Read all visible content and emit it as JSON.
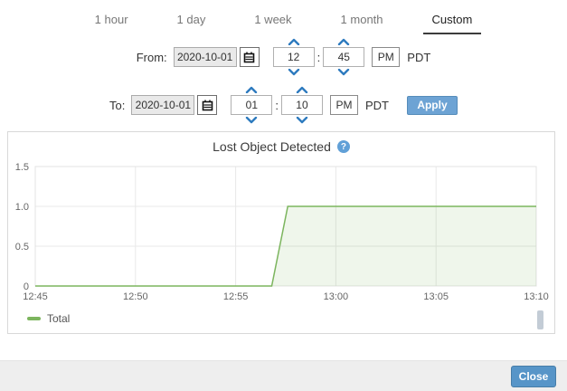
{
  "time_range_tabs": {
    "items": [
      {
        "label": "1 hour",
        "active": false
      },
      {
        "label": "1 day",
        "active": false
      },
      {
        "label": "1 week",
        "active": false
      },
      {
        "label": "1 month",
        "active": false
      },
      {
        "label": "Custom",
        "active": true
      }
    ]
  },
  "from_row": {
    "label": "From:",
    "date_value": "2020-10-01",
    "hour_value": "12",
    "minute_value": "45",
    "meridiem_value": "PM",
    "timezone_label": "PDT"
  },
  "to_row": {
    "label": "To:",
    "date_value": "2020-10-01",
    "hour_value": "01",
    "minute_value": "10",
    "meridiem_value": "PM",
    "timezone_label": "PDT"
  },
  "apply_button_label": "Apply",
  "chart": {
    "title": "Lost Object Detected",
    "help_icon_glyph": "?"
  },
  "chart_data": {
    "type": "area",
    "title": "Lost Object Detected",
    "grid": true,
    "legend_position": "bottom-left",
    "x_axis": {
      "tick_labels": [
        "12:45",
        "12:50",
        "12:55",
        "13:00",
        "13:05",
        "13:10"
      ],
      "tick_minutes": [
        0,
        5,
        10,
        15,
        20,
        25
      ],
      "xlim_minutes": [
        0,
        25
      ]
    },
    "y_axis": {
      "tick_labels": [
        "0",
        "0.5",
        "1.0",
        "1.5"
      ],
      "tick_values": [
        0,
        0.5,
        1.0,
        1.5
      ],
      "ylim": [
        0,
        1.5
      ]
    },
    "series": [
      {
        "name": "Total",
        "color": "#7cb55e",
        "fill_opacity": 0.12,
        "points_minutes": [
          [
            0,
            0
          ],
          [
            11.8,
            0
          ],
          [
            12.6,
            1
          ],
          [
            25,
            1
          ]
        ]
      }
    ]
  },
  "footer": {
    "close_label": "Close"
  },
  "colors": {
    "accent_blue": "#2e7bbf",
    "apply_button_blue": "#6da3d4",
    "close_button_blue": "#5795c8",
    "line_green": "#7cb55e",
    "footer_gray": "#eeeeee"
  }
}
